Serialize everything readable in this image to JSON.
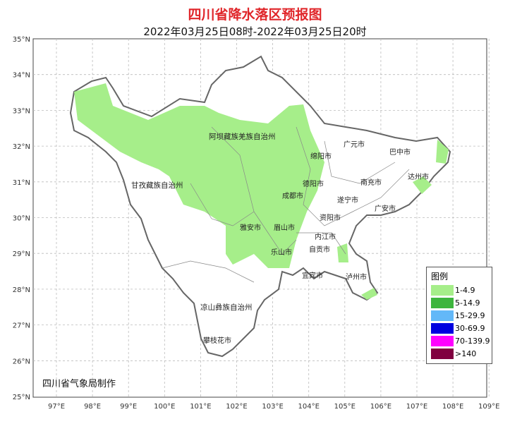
{
  "header": {
    "title": "四川省降水落区预报图",
    "subtitle": "2022年03月25日08时-2022年03月25日20时"
  },
  "axes": {
    "lat_labels": [
      "35°N",
      "34°N",
      "33°N",
      "32°N",
      "31°N",
      "30°N",
      "29°N",
      "28°N",
      "27°N",
      "26°N",
      "25°N"
    ],
    "lon_labels": [
      "97°E",
      "98°E",
      "99°E",
      "100°E",
      "101°E",
      "102°E",
      "103°E",
      "104°E",
      "105°E",
      "106°E",
      "107°E",
      "108°E",
      "109°E"
    ]
  },
  "regions": {
    "aba": "阿坝藏族羌族自治州",
    "ganzi": "甘孜藏族自治州",
    "liangshan": "凉山彝族自治州",
    "panzhihua": "攀枝花市",
    "guangyuan": "广元市",
    "bazhong": "巴中市",
    "mianyang": "绵阳市",
    "dazhou": "达州市",
    "deyang": "德阳市",
    "nanchong": "南充市",
    "chengdu": "成都市",
    "suining": "遂宁市",
    "guangan": "广安市",
    "ziyang": "资阳市",
    "yaan": "雅安市",
    "meishan": "眉山市",
    "neijiang": "内江市",
    "leshan": "乐山市",
    "zigong": "自贡市",
    "yibin": "宜宾市",
    "luzhou": "泸州市"
  },
  "legend": {
    "title": "图例",
    "items": [
      {
        "label": "1-4.9",
        "color": "#a6ee8a"
      },
      {
        "label": "5-14.9",
        "color": "#3db53d"
      },
      {
        "label": "15-29.9",
        "color": "#63b8f8"
      },
      {
        "label": "30-69.9",
        "color": "#0000e0"
      },
      {
        "label": "70-139.9",
        "color": "#ff00ff"
      },
      {
        "label": ">140",
        "color": "#800040"
      }
    ]
  },
  "footer": "四川省气象局制作"
}
